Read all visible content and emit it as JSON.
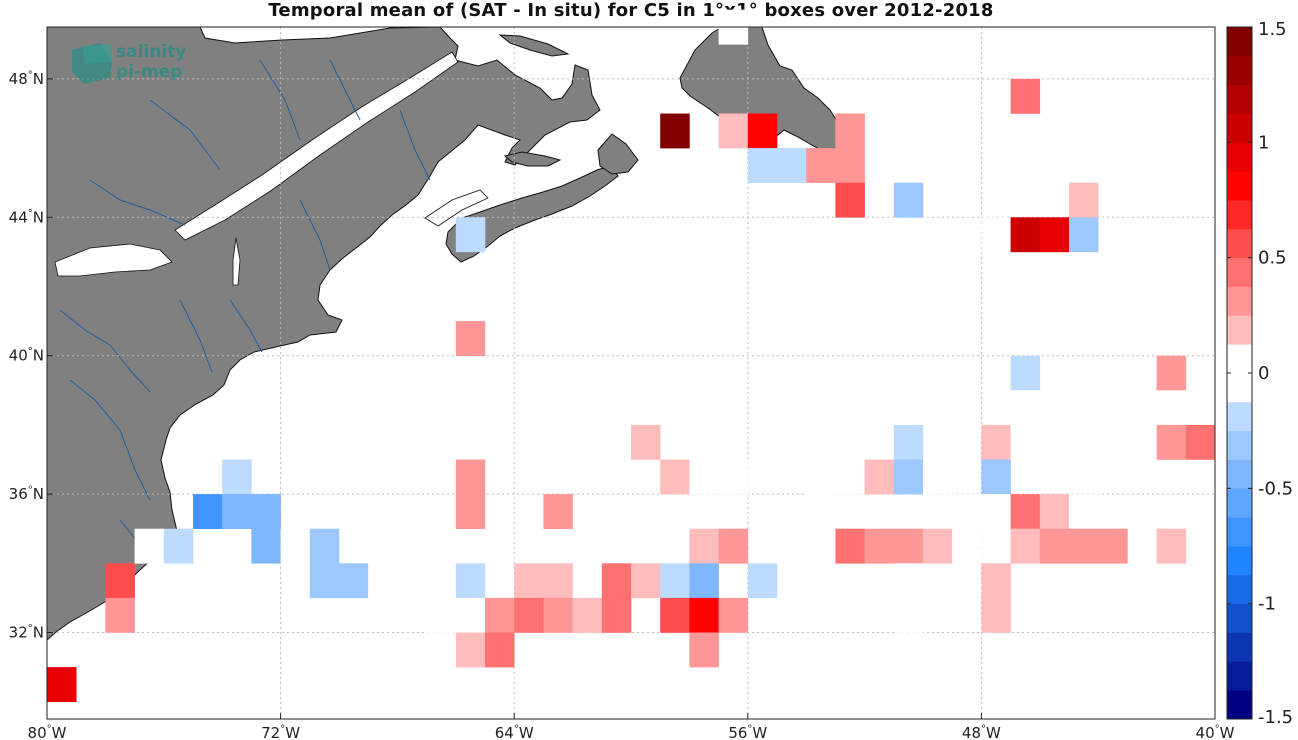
{
  "title": "Temporal mean of (SAT - In situ) for C5 in 1°x1° boxes over 2012-2018",
  "logo": {
    "line1": "salinity",
    "line2": "pi-mep"
  },
  "colors": {
    "land": "#808080",
    "coast": "#111111",
    "river": "#1f5fa0",
    "grid": "#bbbbbb"
  },
  "axes": {
    "lon_range": [
      -80,
      -40
    ],
    "lat_range": [
      29.5,
      49.5
    ],
    "lon_ticks": [
      {
        "value": -80,
        "num": "80",
        "unit": "W"
      },
      {
        "value": -72,
        "num": "72",
        "unit": "W"
      },
      {
        "value": -64,
        "num": "64",
        "unit": "W"
      },
      {
        "value": -56,
        "num": "56",
        "unit": "W"
      },
      {
        "value": -48,
        "num": "48",
        "unit": "W"
      },
      {
        "value": -40,
        "num": "40",
        "unit": "W"
      }
    ],
    "lat_ticks": [
      {
        "value": 48,
        "num": "48",
        "unit": "N"
      },
      {
        "value": 44,
        "num": "44",
        "unit": "N"
      },
      {
        "value": 40,
        "num": "40",
        "unit": "N"
      },
      {
        "value": 36,
        "num": "36",
        "unit": "N"
      },
      {
        "value": 32,
        "num": "32",
        "unit": "N"
      }
    ],
    "grid": true
  },
  "colorbar": {
    "range": [
      -1.5,
      1.5
    ],
    "ticks": [
      "1.5",
      "1",
      "0.5",
      "0",
      "-0.5",
      "-1",
      "-1.5"
    ],
    "colormap": "blue-white-red"
  },
  "chart_data": {
    "type": "heatmap",
    "cell_size_deg": 1,
    "cells": [
      {
        "lon": -56.5,
        "lat": 49.5,
        "v": -0.1
      },
      {
        "lon": -46.5,
        "lat": 47.5,
        "v": 0.45
      },
      {
        "lon": -58.5,
        "lat": 46.5,
        "v": 1.45
      },
      {
        "lon": -56.5,
        "lat": 46.5,
        "v": 0.15
      },
      {
        "lon": -55.5,
        "lat": 46.5,
        "v": 0.85
      },
      {
        "lon": -52.5,
        "lat": 46.5,
        "v": 0.35
      },
      {
        "lon": -55.5,
        "lat": 45.5,
        "v": -0.2
      },
      {
        "lon": -54.5,
        "lat": 45.5,
        "v": -0.2
      },
      {
        "lon": -53.5,
        "lat": 45.5,
        "v": 0.28
      },
      {
        "lon": -52.5,
        "lat": 45.5,
        "v": 0.28
      },
      {
        "lon": -52.5,
        "lat": 44.5,
        "v": 0.5
      },
      {
        "lon": -50.5,
        "lat": 44.5,
        "v": -0.35
      },
      {
        "lon": -44.5,
        "lat": 44.5,
        "v": 0.15
      },
      {
        "lon": -65.5,
        "lat": 43.5,
        "v": -0.2
      },
      {
        "lon": -47.5,
        "lat": 43.5,
        "v": -0.1
      },
      {
        "lon": -46.5,
        "lat": 43.5,
        "v": 1.1
      },
      {
        "lon": -45.5,
        "lat": 43.5,
        "v": 0.9
      },
      {
        "lon": -44.5,
        "lat": 43.5,
        "v": -0.3
      },
      {
        "lon": -46.5,
        "lat": 41.5,
        "v": -0.1
      },
      {
        "lon": -65.5,
        "lat": 40.5,
        "v": 0.3
      },
      {
        "lon": -46.5,
        "lat": 39.5,
        "v": -0.25
      },
      {
        "lon": -41.5,
        "lat": 39.5,
        "v": 0.3
      },
      {
        "lon": -46.5,
        "lat": 38.5,
        "v": -0.1
      },
      {
        "lon": -45.5,
        "lat": 38.5,
        "v": -0.1
      },
      {
        "lon": -43.5,
        "lat": 38.5,
        "v": -0.1
      },
      {
        "lon": -41.5,
        "lat": 38.5,
        "v": -0.1
      },
      {
        "lon": -40.5,
        "lat": 38.5,
        "v": -0.1
      },
      {
        "lon": -59.5,
        "lat": 37.5,
        "v": 0.15
      },
      {
        "lon": -50.5,
        "lat": 37.5,
        "v": -0.25
      },
      {
        "lon": -47.5,
        "lat": 37.5,
        "v": 0.2
      },
      {
        "lon": -46.5,
        "lat": 37.5,
        "v": -0.1
      },
      {
        "lon": -45.5,
        "lat": 37.5,
        "v": -0.1
      },
      {
        "lon": -41.5,
        "lat": 37.5,
        "v": 0.3
      },
      {
        "lon": -40.5,
        "lat": 37.5,
        "v": 0.45
      },
      {
        "lon": -73.5,
        "lat": 36.5,
        "v": -0.2
      },
      {
        "lon": -65.5,
        "lat": 36.5,
        "v": 0.25
      },
      {
        "lon": -58.5,
        "lat": 36.5,
        "v": 0.15
      },
      {
        "lon": -57.5,
        "lat": 36.5,
        "v": -0.1
      },
      {
        "lon": -56.5,
        "lat": 36.5,
        "v": -0.1
      },
      {
        "lon": -53.5,
        "lat": 36.5,
        "v": -0.1
      },
      {
        "lon": -52.5,
        "lat": 36.5,
        "v": -0.1
      },
      {
        "lon": -51.5,
        "lat": 36.5,
        "v": 0.15
      },
      {
        "lon": -50.5,
        "lat": 36.5,
        "v": -0.3
      },
      {
        "lon": -49.5,
        "lat": 36.5,
        "v": -0.1
      },
      {
        "lon": -47.5,
        "lat": 36.5,
        "v": -0.3
      },
      {
        "lon": -74.5,
        "lat": 35.5,
        "v": -0.7
      },
      {
        "lon": -73.5,
        "lat": 35.5,
        "v": -0.4
      },
      {
        "lon": -72.5,
        "lat": 35.5,
        "v": -0.4
      },
      {
        "lon": -65.5,
        "lat": 35.5,
        "v": 0.25
      },
      {
        "lon": -62.5,
        "lat": 35.5,
        "v": 0.35
      },
      {
        "lon": -53.5,
        "lat": 35.5,
        "v": -0.1
      },
      {
        "lon": -48.5,
        "lat": 35.5,
        "v": -0.1
      },
      {
        "lon": -47.5,
        "lat": 35.5,
        "v": -0.1
      },
      {
        "lon": -46.5,
        "lat": 35.5,
        "v": 0.4
      },
      {
        "lon": -45.5,
        "lat": 35.5,
        "v": 0.15
      },
      {
        "lon": -44.5,
        "lat": 35.5,
        "v": -0.1
      },
      {
        "lon": -76.5,
        "lat": 34.5,
        "v": -0.1
      },
      {
        "lon": -75.5,
        "lat": 34.5,
        "v": -0.2
      },
      {
        "lon": -72.5,
        "lat": 34.5,
        "v": -0.4
      },
      {
        "lon": -71.5,
        "lat": 34.5,
        "v": -0.1
      },
      {
        "lon": -70.5,
        "lat": 34.5,
        "v": -0.3
      },
      {
        "lon": -57.5,
        "lat": 34.5,
        "v": 0.15
      },
      {
        "lon": -56.5,
        "lat": 34.5,
        "v": 0.3
      },
      {
        "lon": -54.5,
        "lat": 34.5,
        "v": -0.1
      },
      {
        "lon": -52.5,
        "lat": 34.5,
        "v": 0.4
      },
      {
        "lon": -51.5,
        "lat": 34.5,
        "v": 0.3
      },
      {
        "lon": -50.5,
        "lat": 34.5,
        "v": 0.3
      },
      {
        "lon": -49.5,
        "lat": 34.5,
        "v": 0.2
      },
      {
        "lon": -48.5,
        "lat": 34.5,
        "v": -0.1
      },
      {
        "lon": -46.5,
        "lat": 34.5,
        "v": 0.2
      },
      {
        "lon": -45.5,
        "lat": 34.5,
        "v": 0.3
      },
      {
        "lon": -44.5,
        "lat": 34.5,
        "v": 0.3
      },
      {
        "lon": -43.5,
        "lat": 34.5,
        "v": 0.3
      },
      {
        "lon": -41.5,
        "lat": 34.5,
        "v": 0.15
      },
      {
        "lon": -77.5,
        "lat": 33.5,
        "v": 0.5
      },
      {
        "lon": -70.5,
        "lat": 33.5,
        "v": -0.3
      },
      {
        "lon": -69.5,
        "lat": 33.5,
        "v": -0.3
      },
      {
        "lon": -68.5,
        "lat": 33.5,
        "v": -0.1
      },
      {
        "lon": -67.5,
        "lat": 33.5,
        "v": -0.1
      },
      {
        "lon": -66.5,
        "lat": 33.5,
        "v": -0.1
      },
      {
        "lon": -65.5,
        "lat": 33.5,
        "v": -0.25
      },
      {
        "lon": -63.5,
        "lat": 33.5,
        "v": 0.15
      },
      {
        "lon": -62.5,
        "lat": 33.5,
        "v": 0.15
      },
      {
        "lon": -60.5,
        "lat": 33.5,
        "v": 0.45
      },
      {
        "lon": -59.5,
        "lat": 33.5,
        "v": 0.15
      },
      {
        "lon": -58.5,
        "lat": 33.5,
        "v": -0.15
      },
      {
        "lon": -57.5,
        "lat": 33.5,
        "v": -0.5
      },
      {
        "lon": -55.5,
        "lat": 33.5,
        "v": -0.25
      },
      {
        "lon": -50.5,
        "lat": 33.5,
        "v": -0.1
      },
      {
        "lon": -47.5,
        "lat": 33.5,
        "v": 0.15
      },
      {
        "lon": -77.5,
        "lat": 32.5,
        "v": 0.3
      },
      {
        "lon": -66.5,
        "lat": 32.5,
        "v": -0.1
      },
      {
        "lon": -65.5,
        "lat": 32.5,
        "v": -0.1
      },
      {
        "lon": -64.5,
        "lat": 32.5,
        "v": 0.35
      },
      {
        "lon": -63.5,
        "lat": 32.5,
        "v": 0.45
      },
      {
        "lon": -62.5,
        "lat": 32.5,
        "v": 0.3
      },
      {
        "lon": -61.5,
        "lat": 32.5,
        "v": 0.2
      },
      {
        "lon": -60.5,
        "lat": 32.5,
        "v": 0.45
      },
      {
        "lon": -58.5,
        "lat": 32.5,
        "v": 0.6
      },
      {
        "lon": -57.5,
        "lat": 32.5,
        "v": 0.75
      },
      {
        "lon": -56.5,
        "lat": 32.5,
        "v": 0.3
      },
      {
        "lon": -50.5,
        "lat": 32.5,
        "v": -0.1
      },
      {
        "lon": -47.5,
        "lat": 32.5,
        "v": 0.15
      },
      {
        "lon": -65.5,
        "lat": 31.5,
        "v": 0.15
      },
      {
        "lon": -64.5,
        "lat": 31.5,
        "v": 0.45
      },
      {
        "lon": -57.5,
        "lat": 31.5,
        "v": 0.3
      },
      {
        "lon": -79.5,
        "lat": 30.5,
        "v": 0.9
      }
    ]
  }
}
